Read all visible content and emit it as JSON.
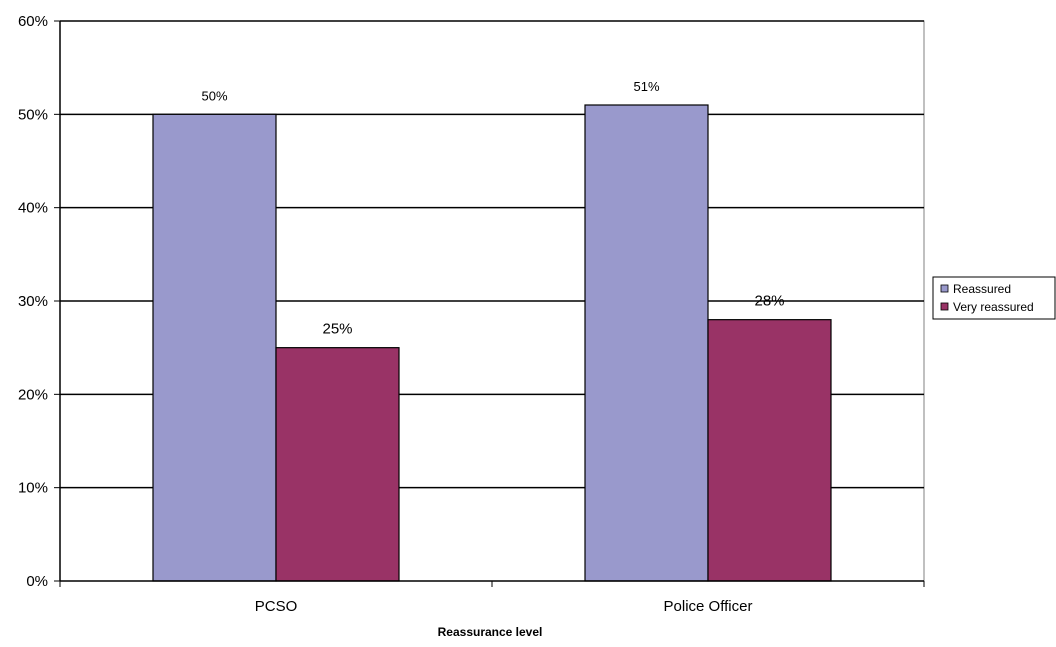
{
  "chart_data": {
    "type": "bar",
    "categories": [
      "PCSO",
      "Police Officer"
    ],
    "series": [
      {
        "name": "Reassured",
        "values": [
          50,
          51
        ],
        "labels": [
          "50%",
          "51%"
        ],
        "color": "#9999cc"
      },
      {
        "name": "Very reassured",
        "values": [
          25,
          28
        ],
        "labels": [
          "25%",
          "28%"
        ],
        "color": "#993366"
      }
    ],
    "xlabel": "Reassurance level",
    "ylabel": "",
    "ylim": [
      0,
      60
    ],
    "yticks": [
      0,
      10,
      20,
      30,
      40,
      50,
      60
    ],
    "ytick_labels": [
      "0%",
      "10%",
      "20%",
      "30%",
      "40%",
      "50%",
      "60%"
    ],
    "grid": true,
    "legend": "right"
  }
}
